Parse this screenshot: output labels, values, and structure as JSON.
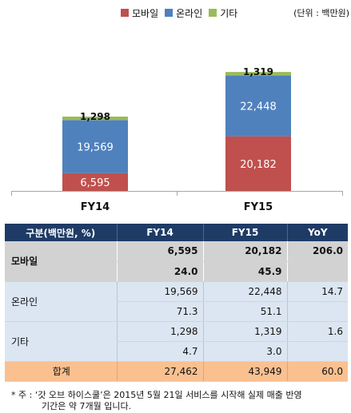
{
  "legend": {
    "items": [
      {
        "label": "모바일",
        "color": "#c0504d"
      },
      {
        "label": "온라인",
        "color": "#4f81bd"
      },
      {
        "label": "기타",
        "color": "#9bbb59"
      }
    ],
    "unit": "(단위 : 백만원)"
  },
  "chart_data": {
    "type": "bar",
    "stacked": true,
    "categories": [
      "FY14",
      "FY15"
    ],
    "series": [
      {
        "name": "모바일",
        "values": [
          6595,
          20182
        ],
        "color": "#c0504d"
      },
      {
        "name": "온라인",
        "values": [
          19569,
          22448
        ],
        "color": "#4f81bd"
      },
      {
        "name": "기타",
        "values": [
          1298,
          1319
        ],
        "color": "#9bbb59"
      }
    ],
    "data_labels": [
      [
        "6,595",
        "19,569",
        "1,298"
      ],
      [
        "20,182",
        "22,448",
        "1,319"
      ]
    ],
    "legend_position": "top-right",
    "unit": "(단위 : 백만원)"
  },
  "table": {
    "headers": [
      "구분(백만원, %)",
      "FY14",
      "FY15",
      "YoY"
    ],
    "rows": [
      {
        "kind": "mobile",
        "label": "모바일",
        "cells": [
          [
            "6,595",
            "20,182",
            "206.0"
          ],
          [
            "24.0",
            "45.9",
            ""
          ]
        ]
      },
      {
        "kind": "online",
        "label": "온라인",
        "cells": [
          [
            "19,569",
            "22,448",
            "14.7"
          ],
          [
            "71.3",
            "51.1",
            ""
          ]
        ]
      },
      {
        "kind": "other",
        "label": "기타",
        "cells": [
          [
            "1,298",
            "1,319",
            "1.6"
          ],
          [
            "4.7",
            "3.0",
            ""
          ]
        ]
      }
    ],
    "total": {
      "label": "합계",
      "cells": [
        "27,462",
        "43,949",
        "60.0"
      ]
    }
  },
  "footnote": {
    "line1": "* 주 : ‘갓 오브 하이스쿨’은 2015년 5월 21일 서비스를 시작해 실제 매출 반영",
    "line2": "기간은 약 7개월 입니다."
  }
}
